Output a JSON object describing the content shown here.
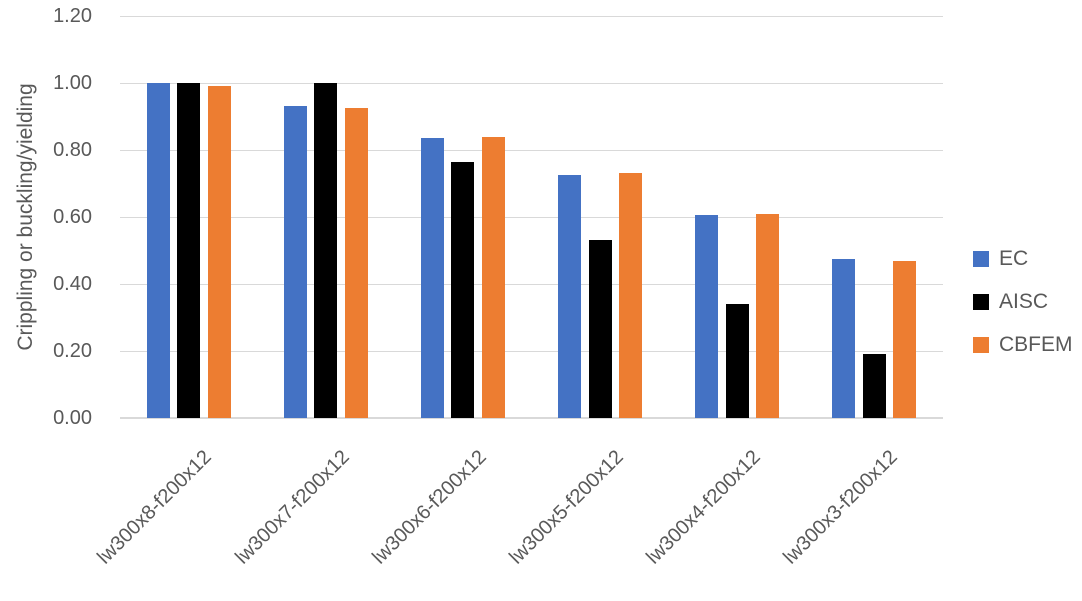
{
  "chart_data": {
    "type": "bar",
    "title": "",
    "xlabel": "",
    "ylabel": "Crippling or buckling/yielding",
    "ylim": [
      0,
      1.2
    ],
    "ytick_step": 0.2,
    "yticks": [
      "0.00",
      "0.20",
      "0.40",
      "0.60",
      "0.80",
      "1.00",
      "1.20"
    ],
    "grid": true,
    "legend_position": "right",
    "categories": [
      "lw300x8-f200x12",
      "lw300x7-f200x12",
      "lw300x6-f200x12",
      "lw300x5-f200x12",
      "lw300x4-f200x12",
      "lw300x3-f200x12"
    ],
    "series": [
      {
        "name": "EC",
        "color": "#4472C4",
        "values": [
          1.0,
          0.93,
          0.835,
          0.725,
          0.605,
          0.475
        ]
      },
      {
        "name": "AISC",
        "color": "#000000",
        "values": [
          1.0,
          1.0,
          0.765,
          0.53,
          0.34,
          0.19
        ]
      },
      {
        "name": "CBFEM",
        "color": "#ED7D31",
        "values": [
          0.99,
          0.925,
          0.84,
          0.73,
          0.61,
          0.47
        ]
      }
    ],
    "colors": {
      "grid": "#d9d9d9",
      "axis_text": "#595959"
    }
  }
}
